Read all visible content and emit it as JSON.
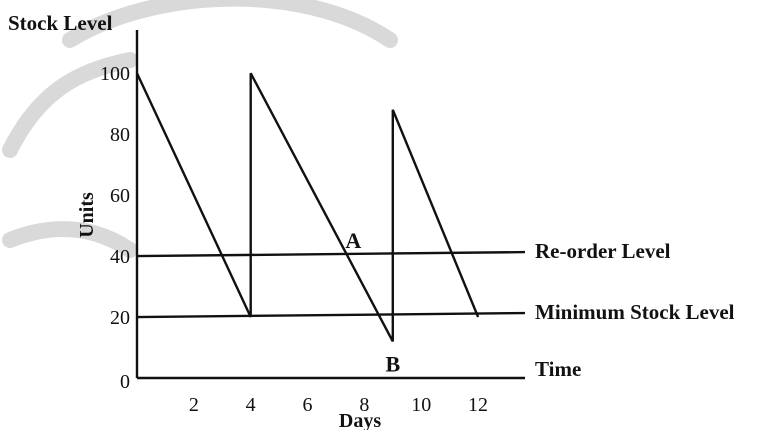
{
  "chart_data": {
    "type": "line",
    "title": "Stock Level",
    "xlabel": "Days",
    "ylabel": "Units",
    "x_end_label": "Time",
    "xlim": [
      0,
      13.3
    ],
    "ylim": [
      0,
      105
    ],
    "x_ticks": [
      2,
      4,
      6,
      8,
      10,
      12
    ],
    "y_ticks": [
      0,
      20,
      40,
      60,
      80,
      100
    ],
    "series": [
      {
        "values": [
          {
            "x": 0,
            "y": 100
          },
          {
            "x": 4,
            "y": 20
          },
          {
            "x": 4,
            "y": 100
          },
          {
            "x": 9,
            "y": 12
          },
          {
            "x": 9,
            "y": 88
          },
          {
            "x": 12,
            "y": 20
          }
        ]
      }
    ],
    "levels": [
      {
        "name": "Re-order Level",
        "y": 40
      },
      {
        "name": "Minimum Stock Level",
        "y": 20
      }
    ],
    "annotations": [
      {
        "text": "A",
        "x": 7.4,
        "y": 40
      },
      {
        "text": "B",
        "x": 9,
        "y": 12
      }
    ],
    "grid": false,
    "colors": {
      "ink": "#111111",
      "watermark": "#d9d9d9"
    }
  }
}
